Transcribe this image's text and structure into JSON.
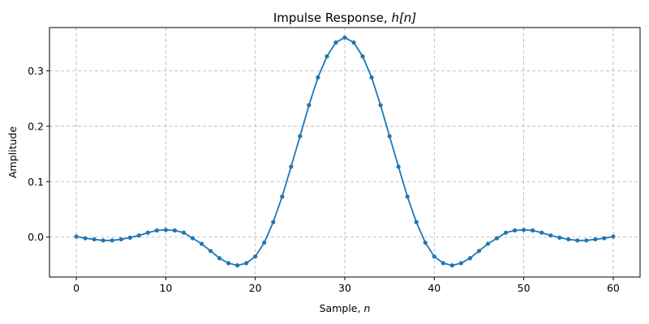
{
  "chart_data": {
    "type": "line",
    "title": "Impulse Response, ",
    "title_math": "h[n]",
    "xlabel": "Sample, ",
    "xlabel_math": "n",
    "ylabel": "Amplitude",
    "xlim": [
      -3,
      63
    ],
    "ylim": [
      -0.072,
      0.378
    ],
    "xticks": [
      0,
      10,
      20,
      30,
      40,
      50,
      60
    ],
    "yticks": [
      0.0,
      0.1,
      0.2,
      0.3
    ],
    "ytick_labels": [
      "0.0",
      "0.1",
      "0.2",
      "0.3"
    ],
    "grid": true,
    "color": "#1f77b4",
    "series": [
      {
        "x": [
          0,
          1,
          2,
          3,
          4,
          5,
          6,
          7,
          8,
          9,
          10,
          11,
          12,
          13,
          14,
          15,
          16,
          17,
          18,
          19,
          20,
          21,
          22,
          23,
          24,
          25,
          26,
          27,
          28,
          29,
          30,
          31,
          32,
          33,
          34,
          35,
          36,
          37,
          38,
          39,
          40,
          41,
          42,
          43,
          44,
          45,
          46,
          47,
          48,
          49,
          50,
          51,
          52,
          53,
          54,
          55,
          56,
          57,
          58,
          59,
          60
        ],
        "y": [
          0.001,
          -0.002,
          -0.004,
          -0.006,
          -0.006,
          -0.004,
          -0.001,
          0.003,
          0.008,
          0.012,
          0.013,
          0.012,
          0.008,
          -0.002,
          -0.012,
          -0.025,
          -0.038,
          -0.047,
          -0.051,
          -0.047,
          -0.035,
          -0.01,
          0.027,
          0.073,
          0.127,
          0.182,
          0.238,
          0.288,
          0.326,
          0.351,
          0.36,
          0.351,
          0.326,
          0.288,
          0.238,
          0.182,
          0.127,
          0.073,
          0.027,
          -0.01,
          -0.035,
          -0.047,
          -0.051,
          -0.047,
          -0.038,
          -0.025,
          -0.012,
          -0.002,
          0.008,
          0.012,
          0.013,
          0.012,
          0.008,
          0.003,
          -0.001,
          -0.004,
          -0.006,
          -0.006,
          -0.004,
          -0.002,
          0.001
        ]
      }
    ]
  }
}
